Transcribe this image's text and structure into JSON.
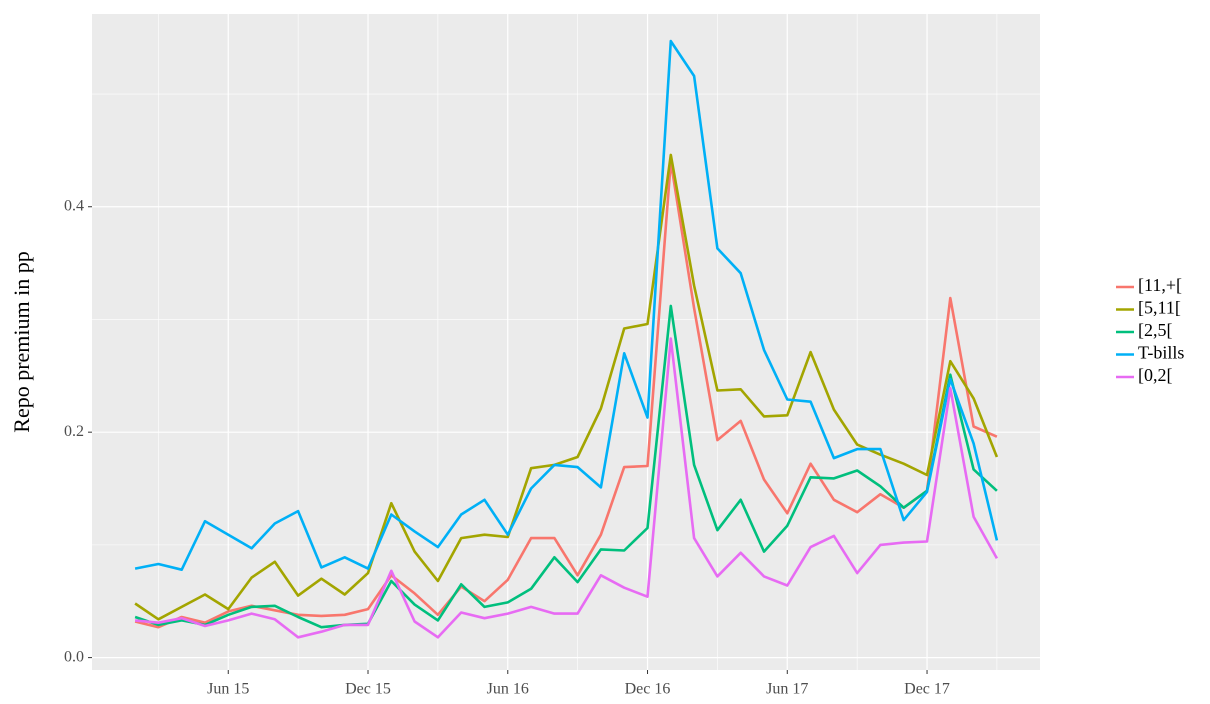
{
  "chart_data": {
    "type": "line",
    "y_label": "Repo premium in pp",
    "x": [
      "2015-02",
      "2015-03",
      "2015-04",
      "2015-05",
      "2015-06",
      "2015-07",
      "2015-08",
      "2015-09",
      "2015-10",
      "2015-11",
      "2015-12",
      "2016-01",
      "2016-02",
      "2016-03",
      "2016-04",
      "2016-05",
      "2016-06",
      "2016-07",
      "2016-08",
      "2016-09",
      "2016-10",
      "2016-11",
      "2016-12",
      "2017-01",
      "2017-02",
      "2017-03",
      "2017-04",
      "2017-05",
      "2017-06",
      "2017-07",
      "2017-08",
      "2017-09",
      "2017-10",
      "2017-11",
      "2017-12",
      "2018-01",
      "2018-02",
      "2018-03"
    ],
    "xticks": [
      {
        "value": "2015-06",
        "label": "Jun 15"
      },
      {
        "value": "2015-12",
        "label": "Dec 15"
      },
      {
        "value": "2016-06",
        "label": "Jun 16"
      },
      {
        "value": "2016-12",
        "label": "Dec 16"
      },
      {
        "value": "2017-06",
        "label": "Jun 17"
      },
      {
        "value": "2017-12",
        "label": "Dec 17"
      }
    ],
    "x_minor_ticks": [
      "2015-03",
      "2015-09",
      "2016-03",
      "2016-09",
      "2017-03",
      "2017-09",
      "2018-03"
    ],
    "ylim": [
      -0.011,
      0.571
    ],
    "yticks": [
      {
        "value": 0,
        "label": "0.0"
      },
      0.2,
      0.4
    ],
    "y_minor_ticks": [
      0.1,
      0.3,
      0.5
    ],
    "grid": true,
    "legend": "right",
    "series": [
      {
        "name": "[11,+[",
        "color": "#F8766D",
        "values": [
          0.032,
          0.027,
          0.036,
          0.031,
          0.041,
          0.046,
          0.042,
          0.038,
          0.037,
          0.038,
          0.043,
          0.073,
          0.057,
          0.038,
          0.063,
          0.05,
          0.069,
          0.106,
          0.106,
          0.073,
          0.109,
          0.169,
          0.17,
          0.44,
          0.31,
          0.193,
          0.21,
          0.158,
          0.128,
          0.172,
          0.14,
          0.129,
          0.145,
          0.133,
          0.148,
          0.319,
          0.205,
          0.196
        ]
      },
      {
        "name": "[5,11[",
        "color": "#A3A500",
        "values": [
          0.048,
          0.034,
          0.045,
          0.056,
          0.043,
          0.071,
          0.085,
          0.055,
          0.07,
          0.056,
          0.075,
          0.137,
          0.094,
          0.068,
          0.106,
          0.109,
          0.107,
          0.168,
          0.171,
          0.178,
          0.221,
          0.292,
          0.296,
          0.446,
          0.33,
          0.237,
          0.238,
          0.214,
          0.215,
          0.271,
          0.22,
          0.189,
          0.18,
          0.172,
          0.162,
          0.263,
          0.23,
          0.178
        ]
      },
      {
        "name": "[2,5[",
        "color": "#00BF7D",
        "values": [
          0.036,
          0.029,
          0.033,
          0.029,
          0.038,
          0.045,
          0.046,
          0.036,
          0.027,
          0.029,
          0.03,
          0.068,
          0.047,
          0.033,
          0.065,
          0.045,
          0.049,
          0.061,
          0.089,
          0.067,
          0.096,
          0.095,
          0.115,
          0.312,
          0.171,
          0.113,
          0.14,
          0.094,
          0.117,
          0.16,
          0.159,
          0.166,
          0.152,
          0.133,
          0.148,
          0.251,
          0.167,
          0.148
        ]
      },
      {
        "name": "T-bills",
        "color": "#00B0F6",
        "values": [
          0.079,
          0.083,
          0.078,
          0.121,
          0.109,
          0.097,
          0.119,
          0.13,
          0.08,
          0.089,
          0.079,
          0.127,
          0.112,
          0.098,
          0.127,
          0.14,
          0.109,
          0.15,
          0.171,
          0.169,
          0.151,
          0.27,
          0.213,
          0.547,
          0.516,
          0.363,
          0.341,
          0.273,
          0.229,
          0.227,
          0.177,
          0.185,
          0.185,
          0.122,
          0.147,
          0.247,
          0.19,
          0.104
        ]
      },
      {
        "name": "[0,2[",
        "color": "#E76BF3",
        "values": [
          0.033,
          0.031,
          0.035,
          0.028,
          0.033,
          0.039,
          0.034,
          0.018,
          0.023,
          0.029,
          0.029,
          0.077,
          0.032,
          0.018,
          0.04,
          0.035,
          0.039,
          0.045,
          0.039,
          0.039,
          0.073,
          0.062,
          0.054,
          0.283,
          0.106,
          0.072,
          0.093,
          0.072,
          0.064,
          0.098,
          0.108,
          0.075,
          0.1,
          0.102,
          0.103,
          0.239,
          0.125,
          0.088
        ]
      }
    ]
  }
}
